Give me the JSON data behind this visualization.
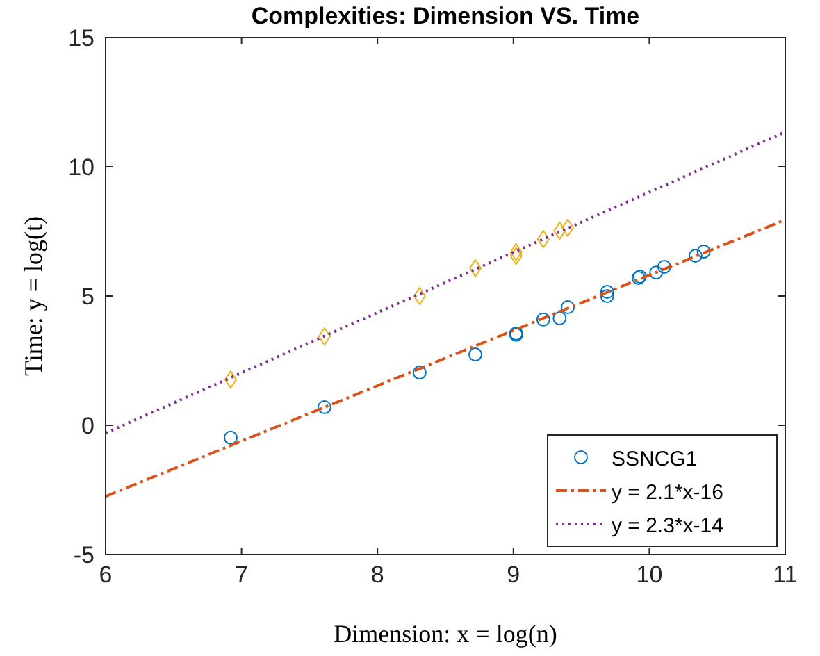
{
  "chart_data": {
    "type": "scatter",
    "title": "Complexities: Dimension VS. Time",
    "xlabel": "Dimension: x = log(n)",
    "ylabel": "Time: y = log(t)",
    "xlim": [
      6,
      11
    ],
    "xticks": [
      6,
      7,
      8,
      9,
      10,
      11
    ],
    "ylim": [
      -5,
      15
    ],
    "yticks": [
      -5,
      0,
      5,
      10,
      15
    ],
    "grid": false,
    "legend": "bottom right",
    "series": [
      {
        "name": "SSNCG1",
        "marker": "circle",
        "color": "#0072bd",
        "x": [
          6.92,
          7.61,
          8.31,
          8.72,
          9.02,
          9.02,
          9.22,
          9.34,
          9.4,
          9.69,
          9.69,
          9.92,
          9.93,
          10.05,
          10.11,
          10.34,
          10.4
        ],
        "values": [
          -0.48,
          0.7,
          2.04,
          2.74,
          3.55,
          3.5,
          4.09,
          4.14,
          4.57,
          5.16,
          5.0,
          5.7,
          5.75,
          5.91,
          6.13,
          6.56,
          6.72
        ]
      },
      {
        "name": "y = 2.1*x-16",
        "type": "line",
        "marker": "none",
        "line_style": "dashed",
        "color": "#d95319",
        "x": [
          6,
          11
        ],
        "values": [
          -2.75,
          7.95
        ]
      },
      {
        "marker": "diamond",
        "color": "#edb120",
        "x": [
          6.92,
          7.61,
          8.31,
          8.72,
          9.02,
          9.02,
          9.22,
          9.34,
          9.4
        ],
        "values": [
          1.77,
          3.44,
          5.0,
          6.08,
          6.7,
          6.55,
          7.2,
          7.53,
          7.64
        ]
      },
      {
        "name": "y = 2.3*x-14",
        "type": "line",
        "marker": "none",
        "line_style": "dotted",
        "color": "#7e2f8e",
        "x": [
          6,
          11
        ],
        "values": [
          -0.3,
          11.35
        ]
      }
    ]
  }
}
